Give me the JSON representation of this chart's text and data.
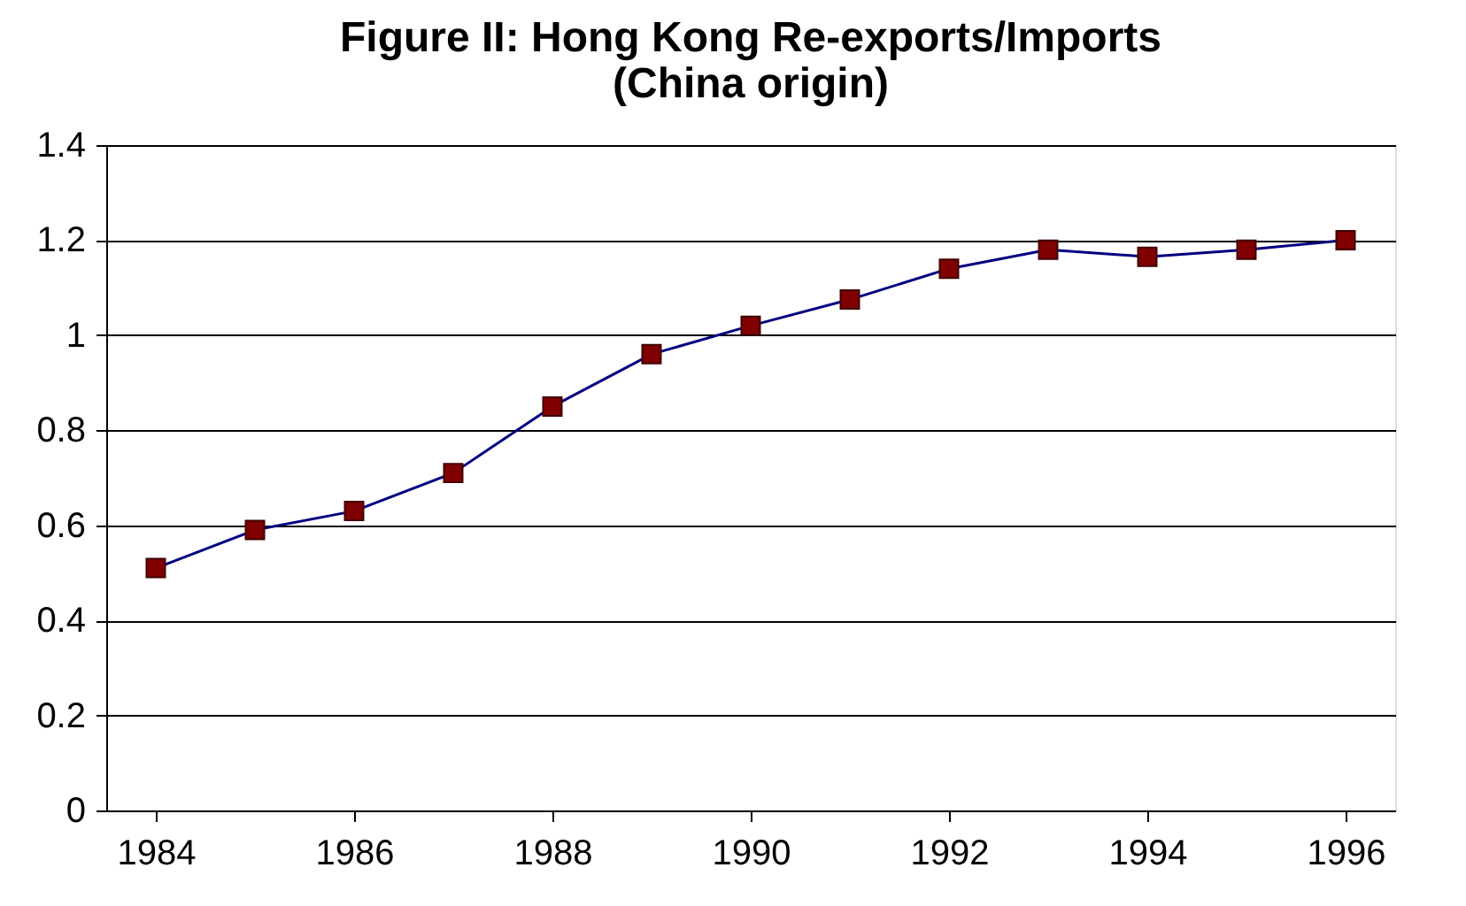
{
  "chart_data": {
    "type": "line",
    "title": "Figure II:  Hong Kong Re-exports/Imports\n(China origin)",
    "x": [
      1984,
      1985,
      1986,
      1987,
      1988,
      1989,
      1990,
      1991,
      1992,
      1993,
      1994,
      1995,
      1996
    ],
    "series": [
      {
        "color": "#000080",
        "colors": [
          "#800000",
          "#800000",
          "#800000",
          "#800000",
          "#800000",
          "#800000",
          "#800000",
          "#800000",
          "#800000",
          "#800000",
          "#800000",
          "#800000",
          "#800000"
        ],
        "values": [
          0.51,
          0.59,
          0.63,
          0.71,
          0.85,
          0.96,
          1.02,
          1.075,
          1.14,
          1.18,
          1.165,
          1.18,
          1.2
        ]
      }
    ],
    "xlim": [
      1983.5,
      1996.5
    ],
    "xticks": [
      1984,
      1986,
      1988,
      1990,
      1992,
      1994,
      1996
    ],
    "ylim": [
      0,
      1.4
    ],
    "yticks": [
      0,
      0.2,
      0.4,
      0.6,
      0.8,
      1,
      1.2,
      1.4
    ],
    "grid": "y",
    "marker": "square",
    "line_style": "solid"
  }
}
